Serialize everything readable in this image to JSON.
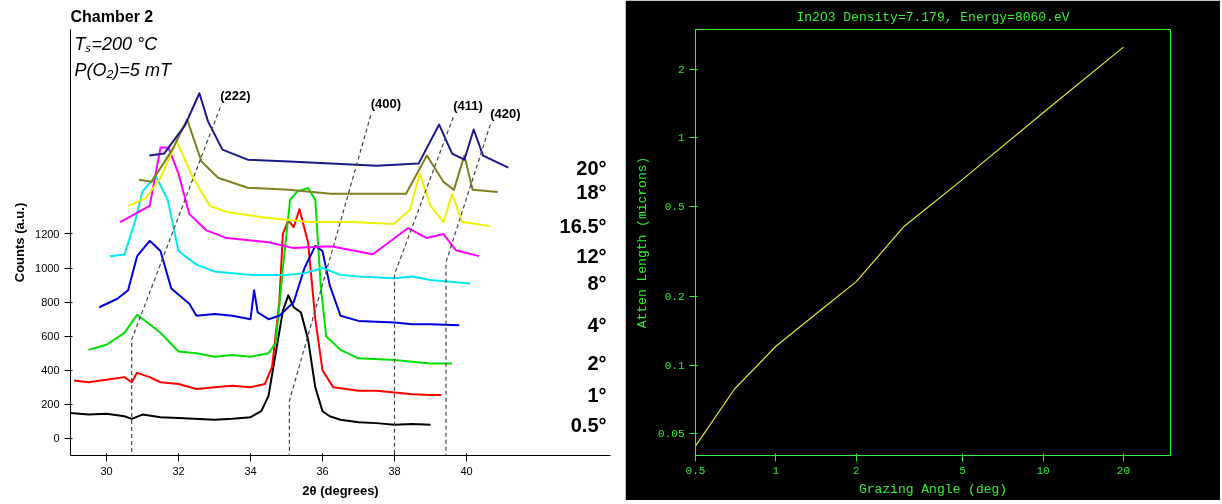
{
  "chart_data": [
    {
      "type": "line",
      "title": "Chamber 2",
      "xlabel": "2θ (degrees)",
      "ylabel": "Counts (a.u.)",
      "xlim": [
        29,
        44
      ],
      "ylim": [
        -100,
        2400
      ],
      "xticks": [
        30,
        32,
        34,
        36,
        38,
        40
      ],
      "yticks": [
        0,
        200,
        400,
        600,
        800,
        1000,
        1200
      ],
      "grid": false,
      "annotations": [
        "Tₛ=200 °C",
        "P(O₂)=5 mT",
        {
          "text": "(222)",
          "x": 33.16,
          "y": 1943
        },
        {
          "text": "(400)",
          "x": 37.34,
          "y": 1897
        },
        {
          "text": "(411)",
          "x": 39.63,
          "y": 1885
        },
        {
          "text": "(420)",
          "x": 40.66,
          "y": 1842
        }
      ],
      "series": [
        {
          "name": "0.5°",
          "color": "#000000",
          "x": [
            29,
            29.5,
            30,
            30.5,
            30.7,
            31,
            31.5,
            32,
            33,
            33.5,
            34,
            34.3,
            34.5,
            34.7,
            34.9,
            35.05,
            35.2,
            35.4,
            35.6,
            35.8,
            36,
            36.2,
            36.5,
            37,
            37.5,
            38,
            38.5,
            39
          ],
          "values": [
            150,
            140,
            145,
            130,
            115,
            140,
            125,
            120,
            110,
            115,
            125,
            160,
            250,
            500,
            750,
            840,
            770,
            740,
            580,
            300,
            160,
            130,
            110,
            95,
            90,
            80,
            85,
            80
          ]
        },
        {
          "name": "1°",
          "color": "#ff0000",
          "x": [
            29.1,
            29.5,
            30,
            30.5,
            30.7,
            30.85,
            31.2,
            31.5,
            32,
            32.5,
            33,
            33.5,
            34,
            34.4,
            34.6,
            34.8,
            34.9,
            35.05,
            35.2,
            35.36,
            35.6,
            35.8,
            36,
            36.3,
            37,
            37.5,
            38,
            38.5,
            39,
            39.3
          ],
          "values": [
            340,
            330,
            345,
            360,
            330,
            385,
            360,
            330,
            320,
            290,
            300,
            310,
            300,
            320,
            420,
            800,
            1200,
            1280,
            1240,
            1345,
            1150,
            700,
            400,
            300,
            280,
            280,
            270,
            260,
            255,
            255
          ]
        },
        {
          "name": "2°",
          "color": "#00e000",
          "x": [
            29.5,
            30,
            30.5,
            30.85,
            31.2,
            31.5,
            32,
            32.5,
            33,
            33.5,
            34,
            34.5,
            34.7,
            34.9,
            35.1,
            35.3,
            35.6,
            35.8,
            35.95,
            36.1,
            36.5,
            37,
            38,
            38.5,
            39,
            39.6
          ],
          "values": [
            520,
            550,
            620,
            725,
            670,
            620,
            510,
            500,
            480,
            490,
            480,
            500,
            560,
            1000,
            1400,
            1450,
            1470,
            1400,
            900,
            600,
            520,
            470,
            460,
            450,
            440,
            440
          ]
        },
        {
          "name": "4°",
          "color": "#0000dd",
          "x": [
            29.8,
            30.3,
            30.6,
            30.85,
            31.2,
            31.5,
            31.8,
            32.3,
            32.5,
            33,
            33.5,
            34,
            34.1,
            34.2,
            34.5,
            34.8,
            35.2,
            35.5,
            35.8,
            36,
            36.2,
            36.5,
            37,
            38,
            38.5,
            39,
            39.8
          ],
          "values": [
            770,
            820,
            870,
            1070,
            1160,
            1100,
            880,
            790,
            720,
            730,
            720,
            700,
            870,
            740,
            700,
            720,
            800,
            1000,
            1130,
            1100,
            900,
            720,
            690,
            680,
            670,
            670,
            665
          ]
        },
        {
          "name": "8°",
          "color": "#00e8f0",
          "x": [
            30.1,
            30.5,
            30.8,
            31,
            31.37,
            31.7,
            32,
            32.5,
            33,
            33.5,
            34,
            35,
            35.5,
            36,
            36.5,
            37,
            38,
            38.5,
            39,
            40.1
          ],
          "values": [
            1070,
            1080,
            1280,
            1450,
            1540,
            1400,
            1100,
            1020,
            980,
            970,
            960,
            960,
            970,
            1000,
            960,
            950,
            940,
            950,
            930,
            910
          ]
        },
        {
          "name": "12°",
          "color": "#ff00ff",
          "x": [
            30.38,
            31.2,
            31.5,
            31.72,
            32,
            32.3,
            32.76,
            33.34,
            34.5,
            35.2,
            36.23,
            37.4,
            38.38,
            38.9,
            39.36,
            39.7,
            40.35
          ],
          "values": [
            1270,
            1365,
            1707,
            1707,
            1554,
            1318,
            1223,
            1176,
            1152,
            1117,
            1128,
            1081,
            1235,
            1176,
            1200,
            1105,
            1070
          ]
        },
        {
          "name": "16.5°",
          "color": "#f0f000",
          "x": [
            30.61,
            31.1,
            31.5,
            31.95,
            32.4,
            32.87,
            33.34,
            34.5,
            35.65,
            36.8,
            37.97,
            38.43,
            38.7,
            39,
            39.36,
            39.6,
            39.88,
            40.64
          ],
          "values": [
            1365,
            1412,
            1530,
            1743,
            1530,
            1365,
            1329,
            1294,
            1270,
            1270,
            1258,
            1341,
            1554,
            1365,
            1270,
            1436,
            1270,
            1247
          ]
        },
        {
          "name": "18°",
          "color": "#808020",
          "x": [
            30.9,
            31.25,
            31.83,
            32.24,
            32.64,
            33.1,
            33.92,
            35.07,
            36.23,
            37.4,
            38.32,
            38.9,
            39.36,
            39.65,
            39.94,
            40.17,
            40.87
          ],
          "values": [
            1518,
            1506,
            1695,
            1872,
            1625,
            1530,
            1471,
            1459,
            1436,
            1436,
            1436,
            1660,
            1506,
            1459,
            1660,
            1459,
            1447
          ]
        },
        {
          "name": "20°",
          "color": "#1a1a8c",
          "x": [
            31.19,
            31.6,
            32.18,
            32.58,
            32.82,
            33.22,
            33.92,
            35.07,
            36.23,
            37.5,
            38.67,
            39.24,
            39.6,
            39.94,
            40.2,
            40.46,
            41.16
          ],
          "values": [
            1660,
            1672,
            1837,
            2026,
            1861,
            1695,
            1636,
            1625,
            1613,
            1601,
            1613,
            1842,
            1672,
            1636,
            1813,
            1660,
            1589
          ]
        },
        {
          "color": "#444444",
          "line_style": "dashed",
          "x": [
            33.16,
            30.7,
            30.7
          ],
          "values": [
            1943,
            580,
            -100
          ]
        },
        {
          "color": "#444444",
          "line_style": "dashed",
          "x": [
            37.34,
            35.08,
            35.08
          ],
          "values": [
            1897,
            220,
            -100
          ]
        },
        {
          "color": "#444444",
          "line_style": "dashed",
          "x": [
            39.63,
            38,
            38
          ],
          "values": [
            1885,
            963,
            -100
          ]
        },
        {
          "color": "#444444",
          "line_style": "dashed",
          "x": [
            40.66,
            39.43,
            39.43
          ],
          "values": [
            1842,
            1034,
            -100
          ]
        }
      ]
    },
    {
      "type": "line",
      "title": "In2O3 Density=7.179, Energy=8060.eV",
      "xlabel": "Grazing Angle (deg)",
      "ylabel": "Atten Length (microns)",
      "log": "xy",
      "xlim": [
        0.5,
        30
      ],
      "ylim": [
        0.04,
        3
      ],
      "xticks": [
        0.5,
        1,
        2,
        5,
        10,
        20
      ],
      "yticks": [
        0.05,
        0.1,
        0.2,
        0.5,
        1,
        2
      ],
      "grid": false,
      "series": [
        {
          "color": "#e8e830",
          "x": [
            0.5,
            0.7,
            1,
            1.5,
            2,
            3,
            5,
            10,
            20
          ],
          "values": [
            0.044,
            0.0785,
            0.121,
            0.178,
            0.233,
            0.405,
            0.657,
            1.29,
            2.51
          ]
        }
      ]
    }
  ]
}
